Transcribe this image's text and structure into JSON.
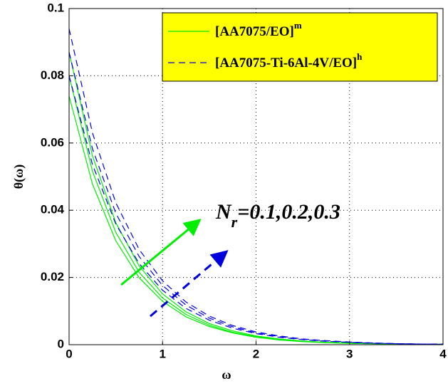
{
  "chart_data": {
    "type": "line",
    "xlabel": "ω",
    "ylabel": "θ(ω)",
    "x": [
      0,
      0.25,
      0.5,
      0.75,
      1,
      1.25,
      1.5,
      1.75,
      2,
      2.25,
      2.5,
      2.75,
      3,
      3.25,
      3.5,
      3.75,
      4
    ],
    "series": [
      {
        "color": "#00ee00",
        "style": "solid",
        "values": [
          0.074,
          0.0478,
          0.0309,
          0.0199,
          0.0129,
          0.0083,
          0.0054,
          0.0035,
          0.0022,
          0.0014,
          0.0009,
          0.0006,
          0.0004,
          0.0003,
          0.0002,
          0.0001,
          0.0001
        ]
      },
      {
        "color": "#00ee00",
        "style": "solid",
        "values": [
          0.08,
          0.0516,
          0.0334,
          0.0215,
          0.0139,
          0.009,
          0.0058,
          0.0037,
          0.0024,
          0.0016,
          0.001,
          0.0006,
          0.0004,
          0.0003,
          0.0002,
          0.0001,
          0.0001
        ]
      },
      {
        "color": "#00ee00",
        "style": "solid",
        "values": [
          0.087,
          0.0562,
          0.0363,
          0.0234,
          0.0151,
          0.0098,
          0.0063,
          0.0041,
          0.0026,
          0.0017,
          0.0011,
          0.0007,
          0.0005,
          0.0003,
          0.0002,
          0.0001,
          0.0001
        ]
      },
      {
        "color": "#0000dd",
        "style": "dashed",
        "values": [
          0.08,
          0.0536,
          0.0359,
          0.0241,
          0.0162,
          0.0108,
          0.0073,
          0.0049,
          0.0033,
          0.0022,
          0.0015,
          0.001,
          0.0007,
          0.0004,
          0.0003,
          0.0002,
          0.0001
        ]
      },
      {
        "color": "#0000dd",
        "style": "dashed",
        "values": [
          0.087,
          0.0583,
          0.0391,
          0.0262,
          0.0176,
          0.0118,
          0.0079,
          0.0053,
          0.0035,
          0.0024,
          0.0016,
          0.0011,
          0.0007,
          0.0005,
          0.0003,
          0.0002,
          0.0001
        ]
      },
      {
        "color": "#0000dd",
        "style": "dashed",
        "values": [
          0.094,
          0.063,
          0.0422,
          0.0283,
          0.019,
          0.0127,
          0.0085,
          0.0057,
          0.0038,
          0.0026,
          0.0017,
          0.0012,
          0.0008,
          0.0005,
          0.0003,
          0.0002,
          0.0002
        ]
      }
    ],
    "legend": [
      {
        "text": "[AA7075/EO]",
        "sup": "m",
        "color": "#00ee00",
        "style": "solid"
      },
      {
        "text": "[AA7075-Ti-6Al-4V/EO]",
        "sup": "h",
        "color": "#0000dd",
        "style": "dashed"
      }
    ],
    "annotation": {
      "text": "N",
      "sub": "r",
      "rest": "=0.1,0.2,0.3"
    },
    "xlim": [
      0,
      4
    ],
    "xticks": [
      0,
      1,
      2,
      3,
      4
    ],
    "ylim": [
      0,
      0.1
    ],
    "yticks": [
      0,
      0.02,
      0.04,
      0.06,
      0.08,
      0.1
    ],
    "grid": true
  }
}
